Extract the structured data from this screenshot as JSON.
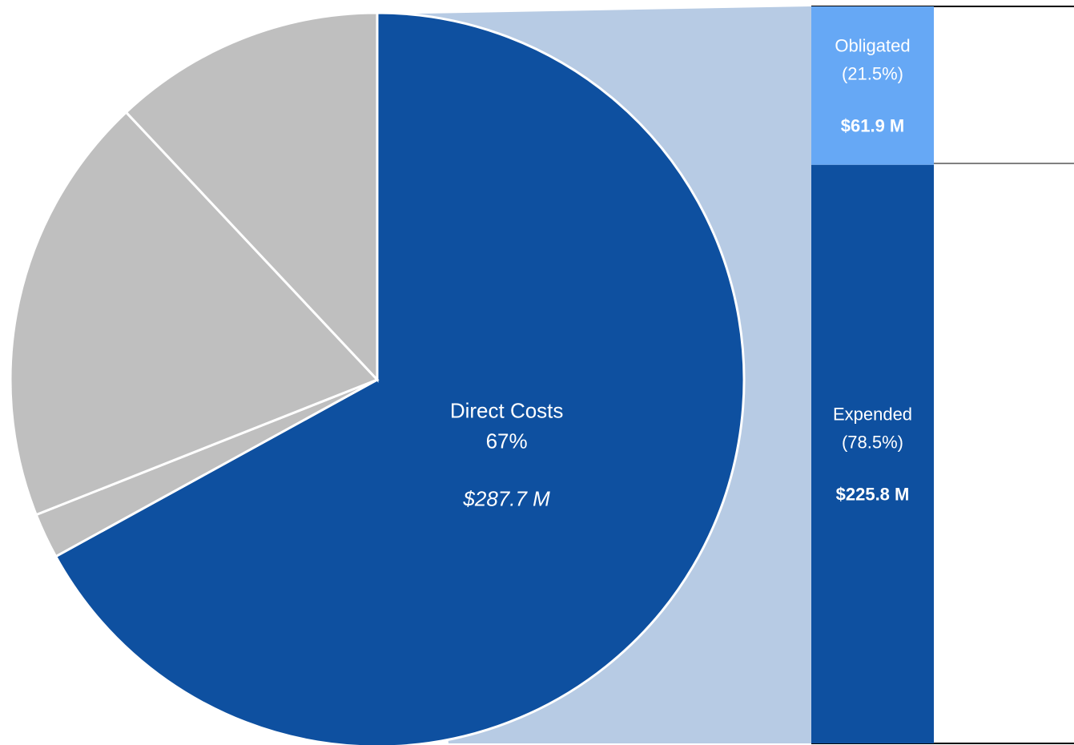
{
  "chart_data": [
    {
      "type": "pie",
      "categories": [
        "Direct Costs",
        null,
        null,
        null
      ],
      "values": [
        67,
        2,
        19,
        12
      ],
      "value_labels": [
        "67%",
        null,
        null,
        null
      ],
      "amount_labels": [
        "$287.7 M",
        null,
        null,
        null
      ],
      "colors": [
        "#0e50a0",
        "#bfbfbf",
        "#bfbfbf",
        "#bfbfbf"
      ]
    },
    {
      "type": "bar",
      "ylim": [
        0,
        100
      ],
      "series": [
        {
          "name": "Obligated",
          "color": "#66a8f5",
          "values": [
            21.5
          ],
          "value_labels": [
            "(21.5%)"
          ],
          "amount_labels": [
            "$61.9 M"
          ]
        },
        {
          "name": "Expended",
          "color": "#0e50a0",
          "values": [
            78.5
          ],
          "value_labels": [
            "(78.5%)"
          ],
          "amount_labels": [
            "$225.8 M"
          ]
        }
      ]
    }
  ]
}
